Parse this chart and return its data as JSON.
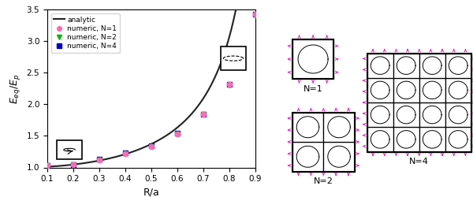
{
  "numeric_x": [
    0.1,
    0.2,
    0.3,
    0.4,
    0.5,
    0.6,
    0.7,
    0.8,
    0.9
  ],
  "numeric_y_N1": [
    1.03,
    1.05,
    1.12,
    1.22,
    1.33,
    1.53,
    1.84,
    2.32,
    3.43
  ],
  "numeric_y_N2": [
    1.03,
    1.05,
    1.12,
    1.22,
    1.33,
    1.53,
    1.84,
    2.3,
    3.4
  ],
  "numeric_y_N4": [
    1.03,
    1.05,
    1.13,
    1.23,
    1.34,
    1.54,
    1.84,
    2.32,
    3.43
  ],
  "color_N1": "#FF69B4",
  "color_N2": "#00BB00",
  "color_N4": "#0000CC",
  "color_analytic": "#222222",
  "color_arrow": "#FF00CC",
  "xlim": [
    0.1,
    0.9
  ],
  "ylim": [
    1.0,
    3.5
  ],
  "xlabel": "R/a",
  "ylabel": "$E_{eq}/E_p$"
}
